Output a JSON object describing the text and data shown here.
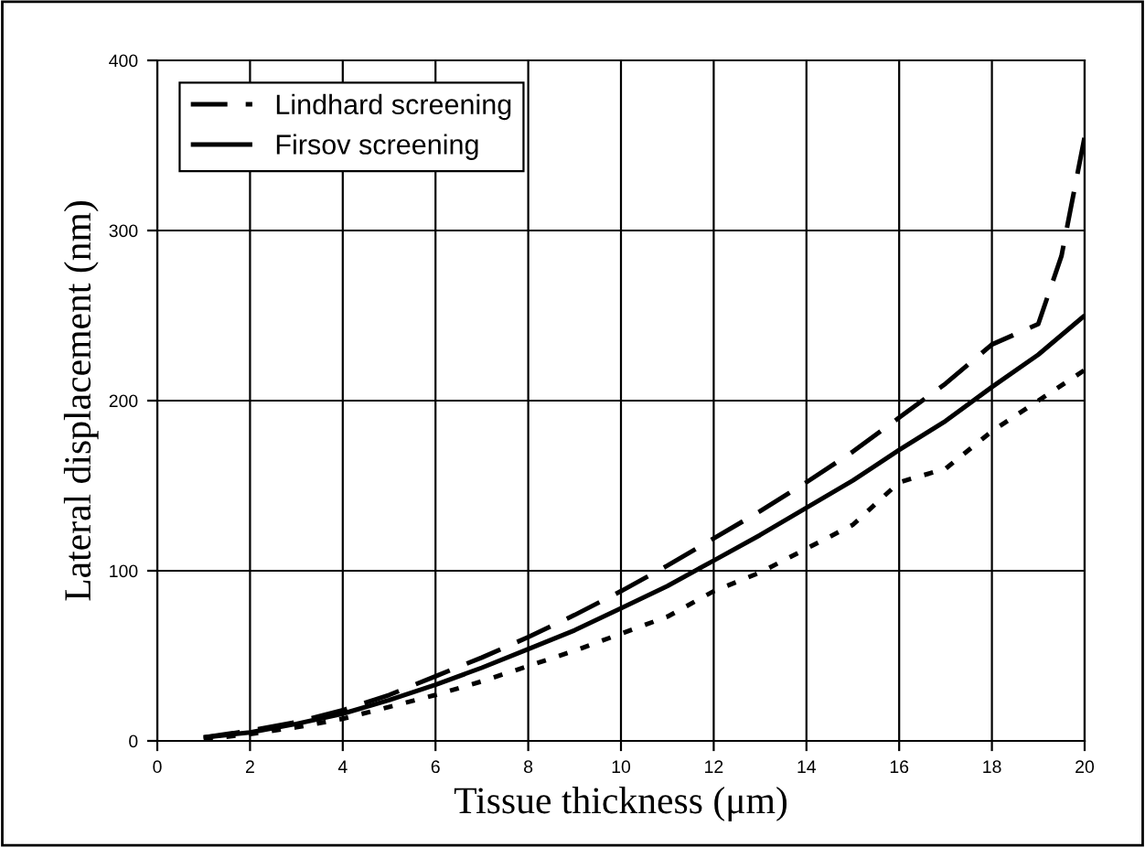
{
  "chart_data": {
    "type": "line",
    "xlabel": "Tissue thickness (μm)",
    "ylabel": "Lateral displacement (nm)",
    "xlim": [
      0,
      20
    ],
    "xticks": [
      0,
      2,
      4,
      6,
      8,
      10,
      12,
      14,
      16,
      18,
      20
    ],
    "ylim": [
      0,
      400
    ],
    "yticks": [
      0,
      100,
      200,
      300,
      400
    ],
    "grid": true,
    "legend": "top left",
    "marker": "none",
    "series": [
      {
        "name": "Lindhard screening",
        "color": "#000000",
        "line_style": "dashed",
        "x": [
          1,
          2,
          3,
          4,
          5,
          6,
          7,
          8,
          9,
          10,
          11,
          12,
          13,
          14,
          15,
          16,
          17,
          18,
          19,
          19.5,
          20
        ],
        "values": [
          2,
          6,
          11,
          18,
          27,
          38,
          49,
          61,
          74,
          88,
          103,
          119,
          135,
          152,
          170,
          190,
          210,
          233,
          245,
          285,
          355
        ]
      },
      {
        "name": "Firsov screening",
        "color": "#000000",
        "line_style": "solid",
        "x": [
          1,
          2,
          3,
          4,
          5,
          6,
          7,
          8,
          9,
          10,
          11,
          12,
          13,
          14,
          15,
          16,
          17,
          18,
          19,
          20
        ],
        "values": [
          2,
          5,
          10,
          16,
          24,
          33,
          43,
          54,
          65,
          78,
          91,
          106,
          121,
          137,
          153,
          171,
          188,
          208,
          227,
          250
        ]
      },
      {
        "color": "#000000",
        "line_style": "dotted",
        "x": [
          1,
          2,
          3,
          4,
          5,
          6,
          7,
          8,
          9,
          10,
          11,
          12,
          13,
          14,
          15,
          16,
          17,
          18,
          19,
          20
        ],
        "values": [
          1,
          4,
          8,
          13,
          20,
          27,
          35,
          44,
          53,
          63,
          73,
          88,
          99,
          113,
          127,
          152,
          160,
          182,
          200,
          218
        ]
      }
    ]
  }
}
